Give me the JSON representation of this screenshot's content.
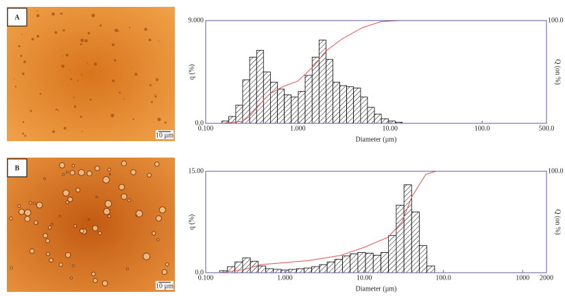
{
  "chart_data": [
    {
      "type": "histogram",
      "panel_label": "A",
      "scale_bar": "10 µm",
      "xlabel": "Diameter (µm)",
      "ylabel": "q (%)",
      "y2label": "Q (on %)",
      "xscale": "log",
      "xlim": [
        0.1,
        500
      ],
      "xticks": [
        {
          "value": 0.1,
          "label": "0.100"
        },
        {
          "value": 1,
          "label": "1.000"
        },
        {
          "value": 10,
          "label": "10.00"
        },
        {
          "value": 100,
          "label": "100.0"
        },
        {
          "value": 500,
          "label": "500.0"
        }
      ],
      "ylim": [
        0,
        9
      ],
      "yticks": [
        {
          "value": 0,
          "label": "0.0"
        },
        {
          "value": 9,
          "label": "9.000"
        }
      ],
      "y2lim": [
        0,
        100
      ],
      "y2ticks": [
        {
          "value": 100,
          "label": "100.0"
        }
      ],
      "bins": [
        0.15,
        0.178,
        0.212,
        0.252,
        0.3,
        0.357,
        0.424,
        0.504,
        0.6,
        0.713,
        0.848,
        1.01,
        1.2,
        1.43,
        1.7,
        2.02,
        2.4,
        2.85,
        3.39,
        4.03,
        4.8,
        5.7,
        6.78,
        8.06,
        9.59,
        11.4,
        13.6
      ],
      "counts": [
        0.2,
        0.6,
        1.6,
        3.8,
        5.8,
        6.4,
        4.5,
        3.6,
        3.0,
        2.5,
        2.3,
        2.8,
        4.2,
        5.8,
        7.3,
        5.6,
        3.6,
        3.3,
        3.2,
        3.1,
        2.3,
        1.4,
        0.8,
        0.4,
        0.2,
        0.1
      ],
      "color": "#000000",
      "line": {
        "axis": "y2",
        "color": "#e05050",
        "x": [
          0.15,
          0.25,
          0.3,
          0.4,
          0.5,
          0.7,
          1.0,
          1.5,
          2.0,
          3.0,
          5.0,
          8.0,
          13.0,
          500
        ],
        "values": [
          0,
          2,
          7,
          20,
          29,
          36,
          41,
          56,
          70,
          82,
          93,
          99,
          100,
          100
        ]
      }
    },
    {
      "type": "histogram",
      "panel_label": "B",
      "scale_bar": "10 µm",
      "xlabel": "Diameter (µm)",
      "ylabel": "q (%)",
      "y2label": "Q (on %)",
      "xscale": "log",
      "xlim": [
        0.1,
        2000
      ],
      "xticks": [
        {
          "value": 0.1,
          "label": "0.100"
        },
        {
          "value": 1,
          "label": "1.000"
        },
        {
          "value": 10,
          "label": "10.00"
        },
        {
          "value": 100,
          "label": "100.0"
        },
        1000,
        2000
      ],
      "ylim": [
        0,
        15
      ],
      "yticks": [
        {
          "value": 0,
          "label": "0.0"
        },
        {
          "value": 15,
          "label": "15.00"
        }
      ],
      "y2lim": [
        0,
        100
      ],
      "y2ticks": [
        {
          "value": 100,
          "label": "100.0"
        }
      ],
      "bins": [
        0.15,
        0.188,
        0.234,
        0.293,
        0.366,
        0.458,
        0.572,
        0.715,
        0.894,
        1.12,
        1.4,
        1.75,
        2.18,
        2.73,
        3.41,
        4.26,
        5.33,
        6.66,
        8.33,
        10.4,
        13.0,
        16.3,
        20.3,
        25.4,
        31.8,
        39.7,
        49.6,
        62.0,
        77.5
      ],
      "counts": [
        0.3,
        0.9,
        1.6,
        2.2,
        1.7,
        1.0,
        0.6,
        0.5,
        0.4,
        0.5,
        0.6,
        0.7,
        0.9,
        1.2,
        1.6,
        2.0,
        2.5,
        2.8,
        3.0,
        2.9,
        2.6,
        3.0,
        5.5,
        10.0,
        13.0,
        9.0,
        4.0,
        1.0
      ],
      "color": "#000000",
      "line": {
        "axis": "y2",
        "color": "#e05050",
        "x": [
          0.15,
          0.3,
          0.5,
          1,
          2,
          5,
          10,
          20,
          30,
          40,
          60,
          80,
          2000
        ],
        "values": [
          0,
          3,
          8,
          10,
          12,
          17,
          25,
          35,
          50,
          75,
          97,
          100,
          100
        ]
      }
    }
  ]
}
